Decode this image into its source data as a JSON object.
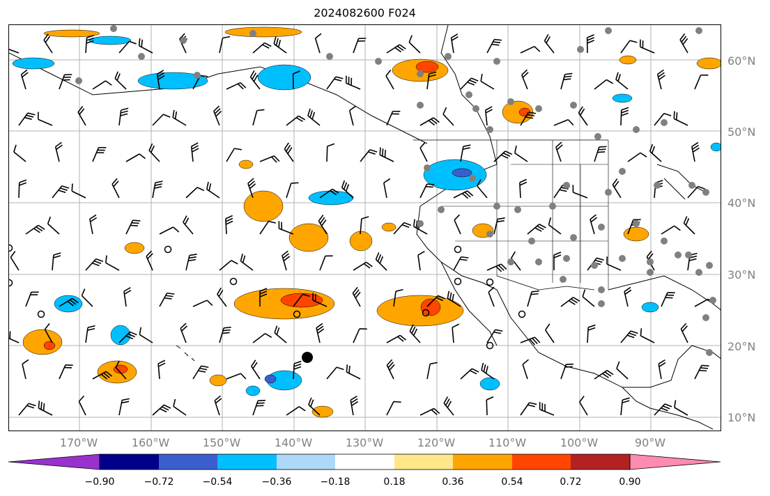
{
  "title": "2024082600 F024",
  "lat_labels": [
    "60°N",
    "50°N",
    "40°N",
    "30°N",
    "20°N",
    "10°N"
  ],
  "lon_labels": [
    "170°W",
    "160°W",
    "150°W",
    "140°W",
    "130°W",
    "120°W",
    "110°W",
    "100°W",
    "90°W"
  ],
  "colorbar": {
    "ticks": [
      "−0.90",
      "−0.72",
      "−0.54",
      "−0.36",
      "−0.18",
      "0.18",
      "0.36",
      "0.54",
      "0.72",
      "0.90"
    ],
    "colors": [
      "#9932cc",
      "#00008b",
      "#3a5fcd",
      "#00bfff",
      "#add8f8",
      "#ffffff",
      "#ffe88a",
      "#ffa500",
      "#ff4500",
      "#b22222",
      "#ff8cb0"
    ]
  },
  "colors": {
    "positive_light": "#ffa500",
    "positive_mid": "#ff4500",
    "negative_light": "#00bfff",
    "negative_mid": "#3a5fcd",
    "station_marker": "#808080",
    "gridline": "#b0b0b0"
  }
}
